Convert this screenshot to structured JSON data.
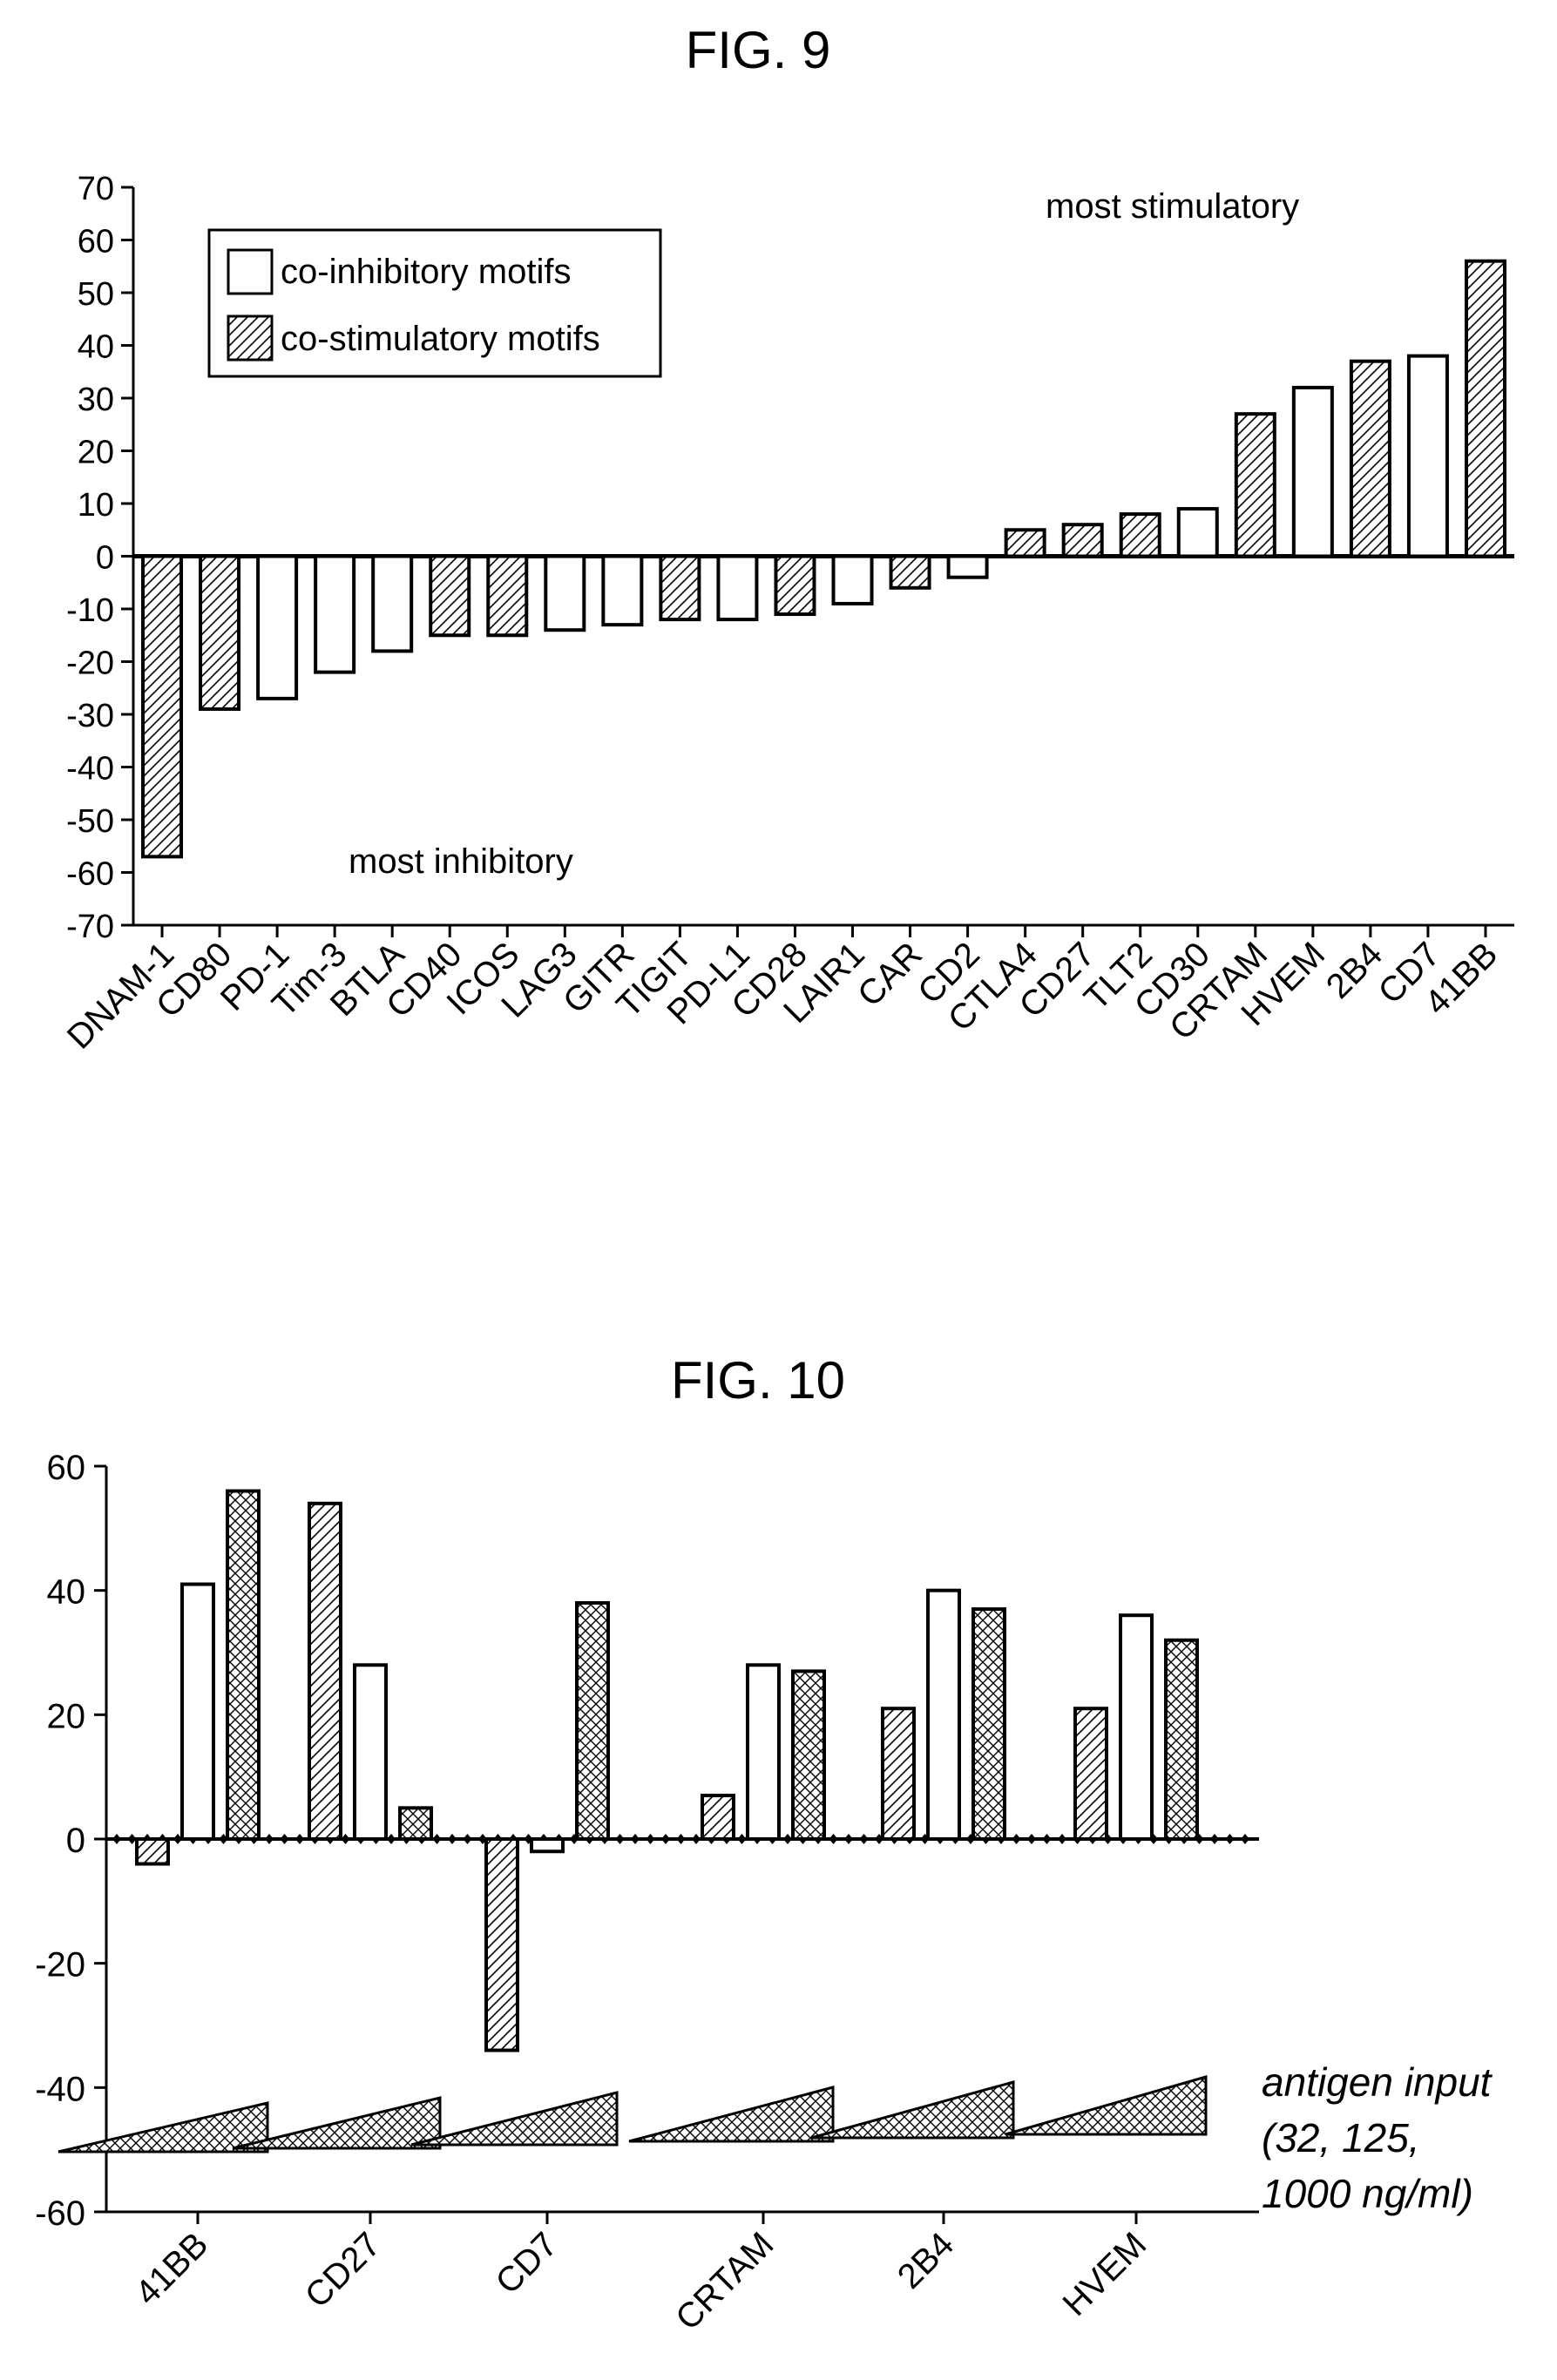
{
  "chart_data": [
    {
      "type": "bar",
      "title": "FIG. 9",
      "ylim": [
        -70,
        70
      ],
      "yticks": [
        70,
        60,
        50,
        40,
        30,
        20,
        10,
        0,
        -10,
        -20,
        -30,
        -40,
        -50,
        -60,
        -70
      ],
      "legend": {
        "placement": "top-left",
        "entries": [
          {
            "label": "co-inhibitory motifs",
            "pattern": "plain"
          },
          {
            "label": "co-stimulatory motifs",
            "pattern": "hatch"
          }
        ]
      },
      "annotations": [
        "most stimulatory",
        "most inhibitory"
      ],
      "categories": [
        "DNAM-1",
        "CD80",
        "PD-1",
        "Tim-3",
        "BTLA",
        "CD40",
        "ICOS",
        "LAG3",
        "GITR",
        "TIGIT",
        "PD-L1",
        "CD28",
        "LAIR1",
        "CAR",
        "CD2",
        "CTLA4",
        "CD27",
        "TLT2",
        "CD30",
        "CRTAM",
        "HVEM",
        "2B4",
        "CD7",
        "41BB"
      ],
      "values": [
        -57,
        -29,
        -27,
        -22,
        -18,
        -15,
        -15,
        -14,
        -13,
        -12,
        -12,
        -11,
        -9,
        -6,
        -4,
        5,
        6,
        8,
        9,
        27,
        32,
        37,
        38,
        56
      ],
      "motif_type": [
        "stim",
        "stim",
        "inhib",
        "inhib",
        "inhib",
        "stim",
        "stim",
        "inhib",
        "inhib",
        "stim",
        "inhib",
        "stim",
        "inhib",
        "stim",
        "inhib",
        "stim",
        "stim",
        "stim",
        "inhib",
        "stim",
        "inhib",
        "stim",
        "inhib",
        "stim"
      ],
      "grid": false
    },
    {
      "type": "bar",
      "title": "FIG. 10",
      "ylim": [
        -60,
        60
      ],
      "yticks": [
        60,
        40,
        20,
        0,
        -20,
        -40,
        -60
      ],
      "categories": [
        "41BB",
        "CD27",
        "CD7",
        "CRTAM",
        "2B4",
        "HVEM"
      ],
      "series_patterns": [
        "hatch",
        "plain",
        "crosshatch"
      ],
      "series": [
        {
          "values": [
            -4,
            54,
            -34,
            7,
            21,
            21
          ]
        },
        {
          "values": [
            41,
            28,
            -2,
            28,
            40,
            36
          ]
        },
        {
          "values": [
            56,
            5,
            38,
            27,
            37,
            32
          ]
        }
      ],
      "annotation": [
        "antigen input",
        "(32, 125,",
        "1000 ng/ml)"
      ],
      "grid": false
    }
  ]
}
